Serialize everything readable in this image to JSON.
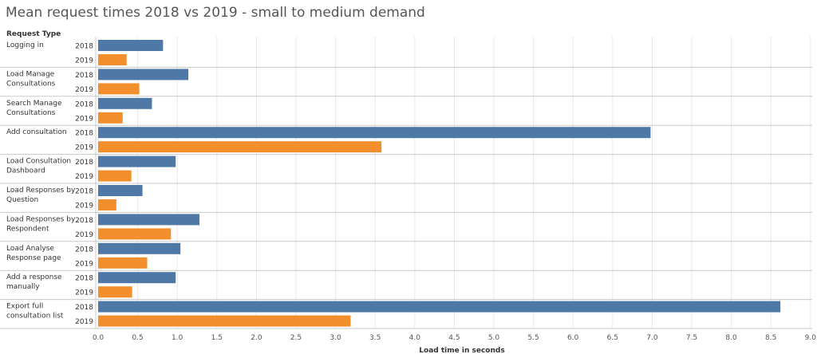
{
  "title": "Mean request times 2018 vs 2019 - small to medium demand",
  "colors": {
    "2018": "#4e79a7",
    "2019": "#f28e2b",
    "grid": "#e8e8e8",
    "divider": "#c9c9c9",
    "text": "#333333"
  },
  "chart_data": {
    "type": "bar",
    "orientation": "horizontal",
    "row_header": "Request Type",
    "xlabel": "Load time in seconds",
    "xlim": [
      0,
      9.0
    ],
    "x_ticks": [
      "0.0",
      "0.5",
      "1.0",
      "1.5",
      "2.0",
      "2.5",
      "3.0",
      "3.5",
      "4.0",
      "4.5",
      "5.0",
      "5.5",
      "6.0",
      "6.5",
      "7.0",
      "7.5",
      "8.0",
      "8.5",
      "9.0"
    ],
    "grid": true,
    "series_names": [
      "2018",
      "2019"
    ],
    "categories": [
      {
        "label": [
          "Logging in"
        ],
        "values": [
          0.82,
          0.36
        ]
      },
      {
        "label": [
          "Load Manage",
          "Consultations"
        ],
        "values": [
          1.14,
          0.52
        ]
      },
      {
        "label": [
          "Search Manage",
          "Consultations"
        ],
        "values": [
          0.68,
          0.31
        ]
      },
      {
        "label": [
          "Add consultation"
        ],
        "values": [
          6.98,
          3.58
        ]
      },
      {
        "label": [
          "Load Consultation",
          "Dashboard"
        ],
        "values": [
          0.98,
          0.42
        ]
      },
      {
        "label": [
          "Load Responses by",
          "Question"
        ],
        "values": [
          0.56,
          0.23
        ]
      },
      {
        "label": [
          "Load Responses by",
          "Respondent"
        ],
        "values": [
          1.28,
          0.92
        ]
      },
      {
        "label": [
          "Load Analyse",
          "Response page"
        ],
        "values": [
          1.04,
          0.62
        ]
      },
      {
        "label": [
          "Add a response",
          "manually"
        ],
        "values": [
          0.98,
          0.43
        ]
      },
      {
        "label": [
          "Export full",
          "consultation list"
        ],
        "values": [
          8.62,
          3.19
        ]
      }
    ]
  }
}
